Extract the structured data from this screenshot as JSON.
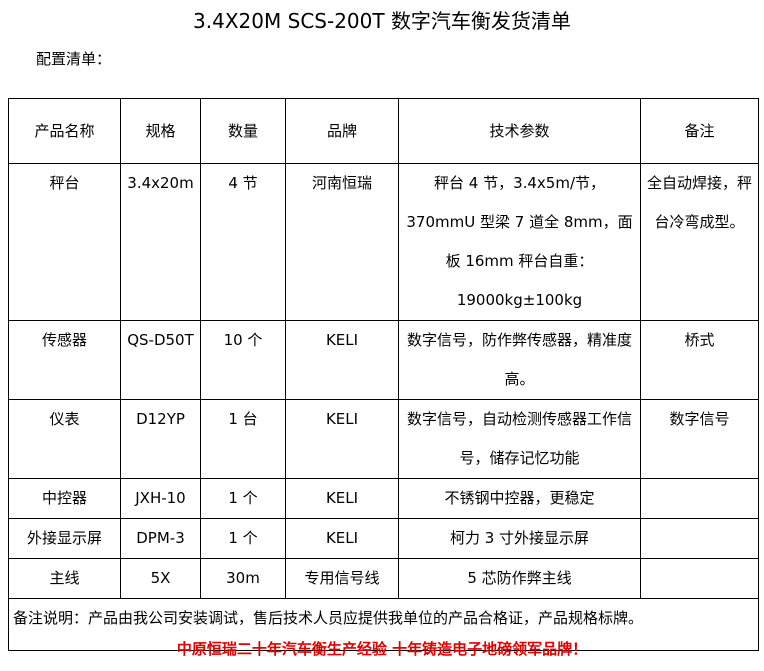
{
  "title": "3.4X20M SCS-200T 数字汽车衡发货清单",
  "subtitle": "配置清单：",
  "headers": [
    "产品名称",
    "规格",
    "数量",
    "品牌",
    "技术参数",
    "备注"
  ],
  "rows": [
    [
      "秤台",
      "3.4x20m",
      "4 节",
      "河南恒瑞",
      "秤台 4 节，3.4x5m/节，370mmU 型梁 7 道全 8mm，面板 16mm 秤台自重：19000kg±100kg",
      "全自动焊接，秤台冷弯成型。"
    ],
    [
      "传感器",
      "QS-D50T",
      "10 个",
      "KELI",
      "数字信号，防作弊传感器，精准度高。",
      "桥式"
    ],
    [
      "仪表",
      "D12YP",
      "1 台",
      "KELI",
      "数字信号，自动检测传感器工作信号，储存记忆功能",
      "数字信号"
    ],
    [
      "中控器",
      "JXH-10",
      "1 个",
      "KELI",
      "不锈钢中控器，更稳定",
      ""
    ],
    [
      "外接显示屏",
      "DPM-3",
      "1 个",
      "KELI",
      "柯力 3 寸外接显示屏",
      ""
    ],
    [
      "主线",
      "5X",
      "30m",
      "专用信号线",
      "5 芯防作弊主线",
      ""
    ]
  ],
  "note": "备注说明：产品由我公司安装调试，售后技术人员应提供我单位的产品合格证，产品规格标牌。",
  "footer": "中原恒瑞二十年汽车衡生产经验 十年铸造电子地磅领军品牌！",
  "colors": {
    "footer": "#e00000"
  }
}
